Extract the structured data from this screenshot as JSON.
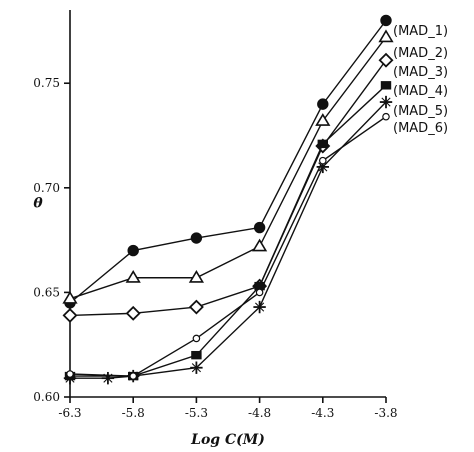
{
  "chart_data": {
    "type": "line",
    "title": "",
    "xlabel": "Log C(M)",
    "ylabel": "θ",
    "x_ticks": [
      "-6.3",
      "-5.8",
      "-5.3",
      "-4.8",
      "-4.3",
      "-3.8"
    ],
    "y_ticks": [
      "0.60",
      "0.65",
      "0.70",
      "0.75"
    ],
    "xlim": [
      -6.3,
      -3.8
    ],
    "ylim": [
      0.6,
      0.785
    ],
    "legend_placement": "right, next to line ends",
    "series": [
      {
        "name": "(MAD_1)",
        "marker": "filled-circle",
        "x": [
          -6.3,
          -5.8,
          -5.3,
          -4.8,
          -4.3,
          -3.8
        ],
        "y": [
          0.645,
          0.67,
          0.676,
          0.681,
          0.74,
          0.78
        ]
      },
      {
        "name": "(MAD_2)",
        "marker": "open-triangle",
        "x": [
          -6.3,
          -5.8,
          -5.3,
          -4.8,
          -4.3,
          -3.8
        ],
        "y": [
          0.647,
          0.657,
          0.657,
          0.672,
          0.732,
          0.772
        ]
      },
      {
        "name": "(MAD_3)",
        "marker": "open-diamond",
        "x": [
          -6.3,
          -5.8,
          -5.3,
          -4.8,
          -4.3,
          -3.8
        ],
        "y": [
          0.639,
          0.64,
          0.643,
          0.653,
          0.72,
          0.761
        ]
      },
      {
        "name": "(MAD_4)",
        "marker": "filled-square",
        "x": [
          -6.3,
          -5.8,
          -5.3,
          -4.8,
          -4.3,
          -3.8
        ],
        "y": [
          0.61,
          0.61,
          0.62,
          0.653,
          0.721,
          0.749
        ]
      },
      {
        "name": "(MAD_5)",
        "marker": "star-cross",
        "x": [
          -6.3,
          -6.0,
          -5.8,
          -5.3,
          -4.8,
          -4.3,
          -3.8
        ],
        "y": [
          0.609,
          0.609,
          0.61,
          0.614,
          0.643,
          0.71,
          0.741
        ]
      },
      {
        "name": "(MAD_6)",
        "marker": "open-circle",
        "x": [
          -6.3,
          -5.8,
          -5.3,
          -4.8,
          -4.3,
          -3.8
        ],
        "y": [
          0.611,
          0.61,
          0.628,
          0.65,
          0.713,
          0.734
        ]
      }
    ]
  }
}
